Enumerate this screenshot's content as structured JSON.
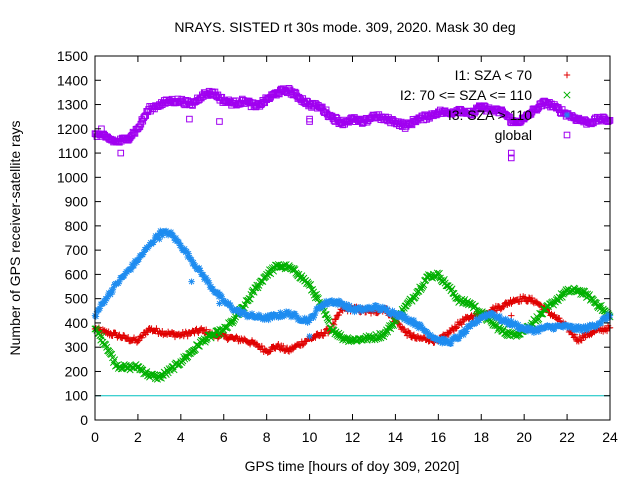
{
  "chart_data": {
    "type": "scatter",
    "title": "NRAYS. SISTED rt 30s mode. 309, 2020. Mask 30 deg",
    "xlabel": "GPS time [hours of doy 309, 2020]",
    "ylabel": "Number of GPS receiver-satellite rays",
    "xlim": [
      0,
      24
    ],
    "ylim": [
      0,
      1500
    ],
    "xticks": [
      "0",
      "2",
      "4",
      "6",
      "8",
      "10",
      "12",
      "14",
      "16",
      "18",
      "20",
      "22",
      "24"
    ],
    "yticks": [
      "0",
      "100",
      "200",
      "300",
      "400",
      "500",
      "600",
      "700",
      "800",
      "900",
      "1000",
      "1100",
      "1200",
      "1300",
      "1400",
      "1500"
    ],
    "reference_line": {
      "y": 100,
      "color": "#00c0c0"
    },
    "series": [
      {
        "name": "I1: SZA < 70",
        "marker": "+",
        "color": "#e00000",
        "x": [
          0,
          0.5,
          1,
          1.5,
          2,
          2.5,
          3,
          3.5,
          4,
          4.5,
          5,
          5.5,
          6,
          6.5,
          7,
          7.5,
          8,
          8.5,
          9,
          9.5,
          10,
          10.5,
          11,
          11.5,
          12,
          12.5,
          13,
          13.5,
          14,
          14.5,
          15,
          15.5,
          16,
          16.5,
          17,
          17.5,
          18,
          18.5,
          19,
          19.5,
          20,
          20.5,
          21,
          21.5,
          22,
          22.5,
          23,
          23.5,
          24
        ],
        "values": [
          375,
          360,
          350,
          335,
          325,
          375,
          365,
          355,
          350,
          360,
          370,
          350,
          345,
          335,
          330,
          310,
          285,
          305,
          285,
          310,
          335,
          350,
          375,
          455,
          460,
          450,
          445,
          460,
          410,
          360,
          335,
          335,
          325,
          360,
          400,
          425,
          435,
          455,
          470,
          495,
          500,
          490,
          455,
          420,
          380,
          330,
          355,
          370,
          380
        ],
        "outliers": [
          [
            19.4,
            430
          ]
        ]
      },
      {
        "name": "I2: 70 <= SZA <= 110",
        "marker": "x",
        "color": "#00b000",
        "x": [
          0,
          0.5,
          1,
          1.5,
          2,
          2.5,
          3,
          3.5,
          4,
          4.5,
          5,
          5.5,
          6,
          6.5,
          7,
          7.5,
          8,
          8.5,
          9,
          9.5,
          10,
          10.5,
          11,
          11.5,
          12,
          12.5,
          13,
          13.5,
          14,
          14.5,
          15,
          15.5,
          16,
          16.5,
          17,
          17.5,
          18,
          18.5,
          19,
          19.5,
          20,
          20.5,
          21,
          21.5,
          22,
          22.5,
          23,
          23.5,
          24
        ],
        "values": [
          375,
          310,
          225,
          215,
          220,
          185,
          175,
          205,
          240,
          280,
          325,
          350,
          370,
          415,
          475,
          545,
          600,
          635,
          630,
          600,
          555,
          480,
          380,
          340,
          330,
          335,
          340,
          355,
          410,
          470,
          525,
          590,
          600,
          545,
          490,
          480,
          440,
          400,
          365,
          350,
          370,
          410,
          455,
          495,
          530,
          535,
          510,
          470,
          425
        ],
        "outliers": []
      },
      {
        "name": "I3: SZA > 110",
        "marker": "*",
        "color": "#1e8cf0",
        "x": [
          0,
          0.5,
          1,
          1.5,
          2,
          2.5,
          3,
          3.5,
          4,
          4.5,
          5,
          5.5,
          6,
          6.5,
          7,
          7.5,
          8,
          8.5,
          9,
          9.5,
          10,
          10.5,
          11,
          11.5,
          12,
          12.5,
          13,
          13.5,
          14,
          14.5,
          15,
          15.5,
          16,
          16.5,
          17,
          17.5,
          18,
          18.5,
          19,
          19.5,
          20,
          20.5,
          21,
          21.5,
          22,
          22.5,
          23,
          23.5,
          24
        ],
        "values": [
          430,
          500,
          560,
          610,
          660,
          715,
          770,
          770,
          720,
          660,
          600,
          540,
          490,
          455,
          435,
          425,
          420,
          430,
          440,
          420,
          410,
          470,
          490,
          480,
          455,
          455,
          465,
          455,
          440,
          420,
          395,
          360,
          330,
          320,
          345,
          385,
          425,
          440,
          410,
          395,
          375,
          370,
          380,
          385,
          385,
          375,
          380,
          400,
          430
        ],
        "outliers": [
          [
            4.5,
            570
          ],
          [
            5.8,
            480
          ],
          [
            10.0,
            345
          ],
          [
            3.0,
            745
          ]
        ]
      },
      {
        "name": "global",
        "marker": "square",
        "color": "#a000f0",
        "x": [
          0,
          0.5,
          1,
          1.5,
          2,
          2.5,
          3,
          3.5,
          4,
          4.5,
          5,
          5.5,
          6,
          6.5,
          7,
          7.5,
          8,
          8.5,
          9,
          9.5,
          10,
          10.5,
          11,
          11.5,
          12,
          12.5,
          13,
          13.5,
          14,
          14.5,
          15,
          15.5,
          16,
          16.5,
          17,
          17.5,
          18,
          18.5,
          19,
          19.5,
          20,
          20.5,
          21,
          21.5,
          22,
          22.5,
          23,
          23.5,
          24
        ],
        "values": [
          1180,
          1165,
          1145,
          1160,
          1200,
          1280,
          1300,
          1315,
          1315,
          1300,
          1340,
          1350,
          1315,
          1305,
          1315,
          1290,
          1320,
          1350,
          1360,
          1330,
          1300,
          1290,
          1250,
          1225,
          1240,
          1225,
          1255,
          1240,
          1230,
          1210,
          1240,
          1250,
          1270,
          1265,
          1280,
          1260,
          1290,
          1275,
          1270,
          1225,
          1240,
          1280,
          1310,
          1285,
          1260,
          1240,
          1225,
          1240,
          1235
        ],
        "outliers": [
          [
            1.2,
            1100
          ],
          [
            19.4,
            1100
          ],
          [
            19.4,
            1080
          ],
          [
            5.8,
            1230
          ],
          [
            4.4,
            1240
          ],
          [
            10.0,
            1240
          ],
          [
            10.0,
            1230
          ],
          [
            0.3,
            1200
          ]
        ]
      }
    ]
  }
}
